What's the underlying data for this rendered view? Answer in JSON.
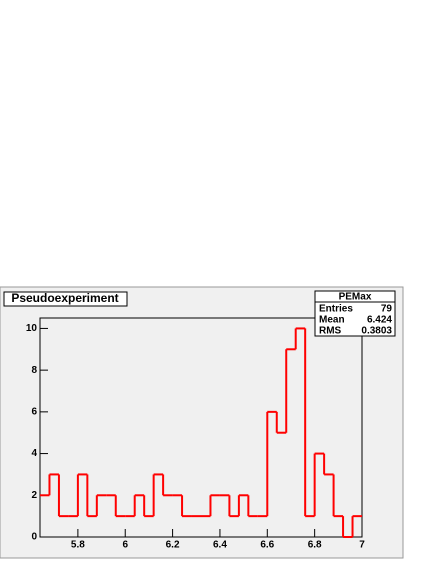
{
  "chart_data": {
    "type": "histogram",
    "title": "Pseudoexperiment",
    "bins": [
      5.64,
      5.68,
      5.72,
      5.76,
      5.8,
      5.84,
      5.88,
      5.92,
      5.96,
      6.0,
      6.04,
      6.08,
      6.12,
      6.16,
      6.2,
      6.24,
      6.28,
      6.32,
      6.36,
      6.4,
      6.44,
      6.48,
      6.52,
      6.56,
      6.6,
      6.64,
      6.68,
      6.72,
      6.76,
      6.8,
      6.84,
      6.88,
      6.92,
      6.96,
      7.0
    ],
    "values": [
      2,
      3,
      1,
      1,
      3,
      1,
      2,
      2,
      1,
      1,
      2,
      1,
      3,
      2,
      2,
      1,
      1,
      1,
      2,
      2,
      1,
      2,
      1,
      1,
      6,
      5,
      9,
      10,
      1,
      4,
      3,
      1,
      0,
      1
    ],
    "color": "#ff0000",
    "xlim": [
      5.64,
      7.0
    ],
    "xticks": [
      5.8,
      6,
      6.2,
      6.4,
      6.6,
      6.8,
      7
    ],
    "ylim": [
      0,
      10.5
    ],
    "yticks": [
      0,
      2,
      4,
      6,
      8,
      10
    ],
    "stats": {
      "title": "PEMax",
      "rows": [
        {
          "label": "Entries",
          "value": 79
        },
        {
          "label": "Mean",
          "value": 6.424
        },
        {
          "label": "RMS",
          "value": 0.3803
        }
      ]
    }
  }
}
